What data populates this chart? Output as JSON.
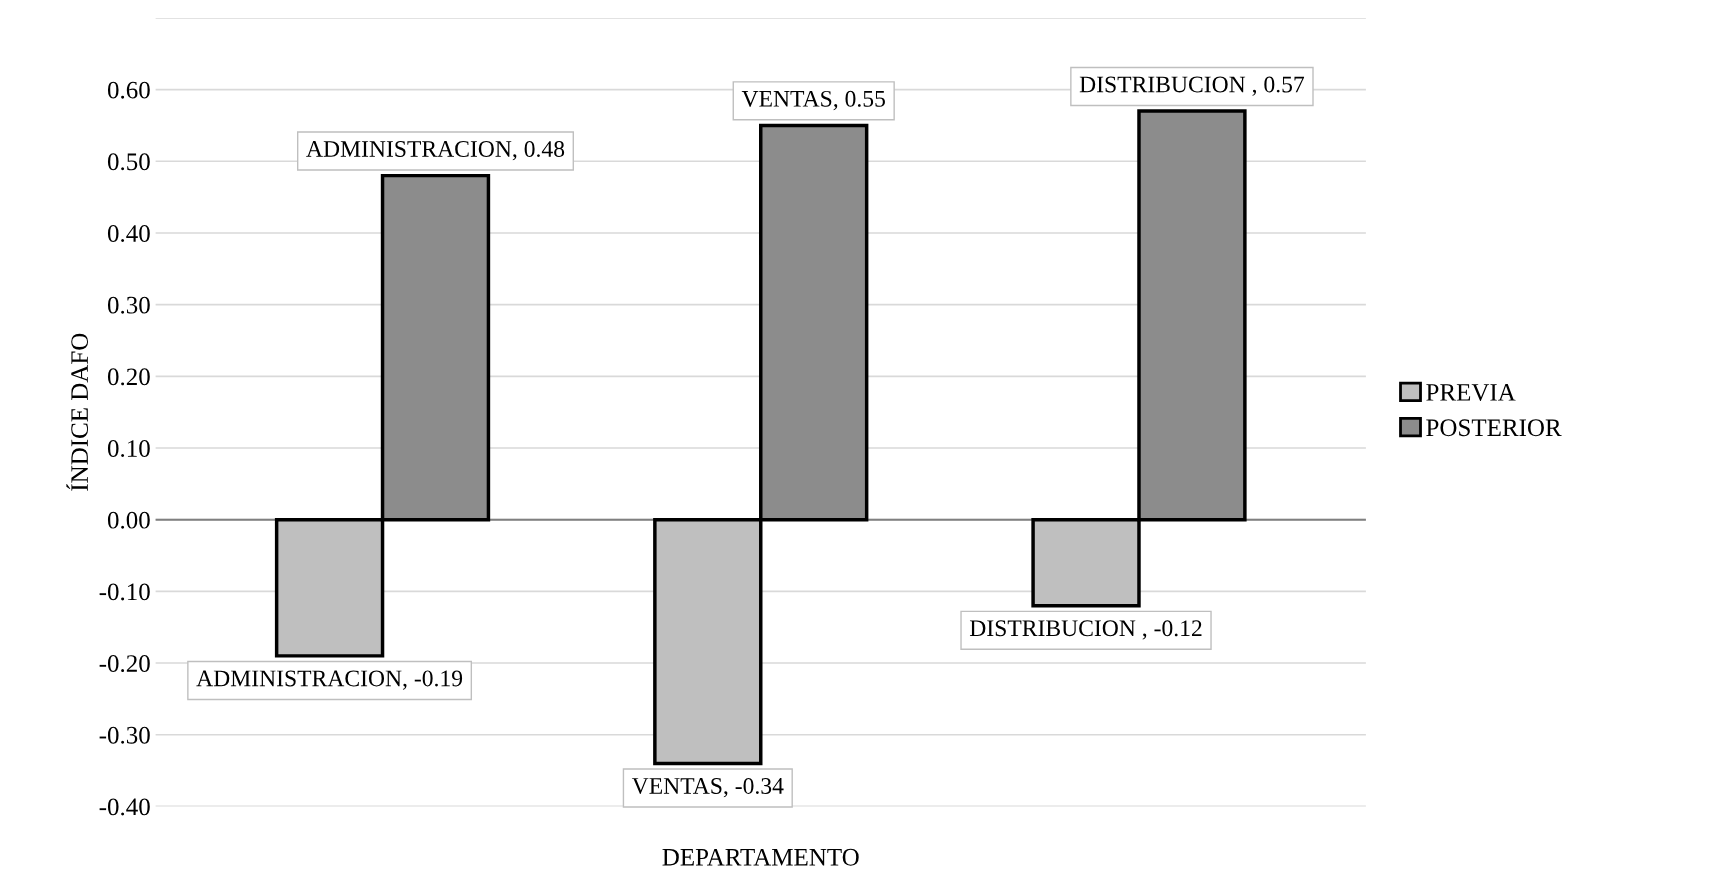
{
  "chart_data": {
    "type": "bar",
    "xlabel": "DEPARTAMENTO",
    "ylabel": "ÍNDICE DAFO",
    "categories": [
      null,
      null,
      null
    ],
    "series": [
      {
        "name": "PREVIA",
        "color": "#bfbfbf",
        "values": [
          -0.19,
          -0.34,
          -0.12
        ],
        "value_labels": [
          "ADMINISTRACION, -0.19",
          "VENTAS, -0.34",
          "DISTRIBUCION , -0.12"
        ]
      },
      {
        "name": "POSTERIOR",
        "color": "#8c8c8c",
        "values": [
          0.48,
          0.55,
          0.57
        ],
        "value_labels": [
          "ADMINISTRACION, 0.48",
          "VENTAS, 0.55",
          "DISTRIBUCION , 0.57"
        ]
      }
    ],
    "ylim": [
      -0.4,
      0.7
    ],
    "yticks": [
      {
        "value": -0.4,
        "label": "-0.40"
      },
      {
        "value": -0.3,
        "label": "-0.30"
      },
      {
        "value": -0.2,
        "label": "-0.20"
      },
      {
        "value": -0.1,
        "label": "-0.10"
      },
      {
        "value": 0,
        "label": "0.00"
      },
      {
        "value": 0.1,
        "label": "0.10"
      },
      {
        "value": 0.2,
        "label": "0.20"
      },
      {
        "value": 0.3,
        "label": "0.30"
      },
      {
        "value": 0.4,
        "label": "0.40"
      },
      {
        "value": 0.5,
        "label": "0.50"
      },
      {
        "value": 0.6,
        "label": "0.60"
      },
      {
        "value": 0.7,
        "label": null
      }
    ],
    "grid": "y",
    "legend": "right",
    "tick_labels": "y"
  }
}
